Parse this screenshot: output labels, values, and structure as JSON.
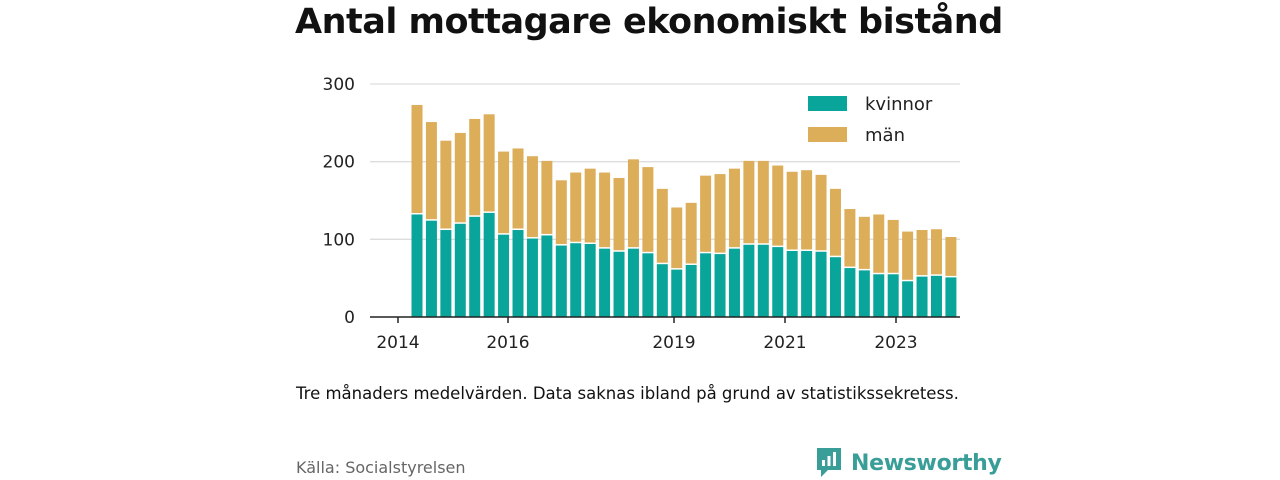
{
  "title": "Antal mottagare ekonomiskt bistånd",
  "note": "Tre månaders medelvärden. Data saknas ibland på grund av statistikssekretess.",
  "source": "Källa: Socialstyrelsen",
  "brand": {
    "name": "Newsworthy",
    "icon": "newsworthy-logo-icon",
    "color": "#3a9e98"
  },
  "colors": {
    "kvinnor": "#0aa59a",
    "man": "#dcae5a",
    "grid": "#dddddd",
    "axis": "#222222"
  },
  "chart_data": {
    "type": "bar",
    "stacked": true,
    "title": "Antal mottagare ekonomiskt bistånd",
    "xlabel": "",
    "ylabel": "",
    "ylim": [
      0,
      300
    ],
    "yticks": [
      0,
      100,
      200,
      300
    ],
    "xticks": [
      "2014",
      "2016",
      "2019",
      "2021",
      "2023"
    ],
    "grid": true,
    "legend_position": "top-right",
    "series": [
      {
        "name": "kvinnor",
        "color": "#0aa59a",
        "values": [
          132,
          124,
          112,
          120,
          129,
          134,
          106,
          112,
          101,
          105,
          92,
          95,
          94,
          88,
          84,
          88,
          82,
          68,
          61,
          67,
          82,
          81,
          88,
          93,
          93,
          90,
          85,
          85,
          84,
          77,
          63,
          60,
          55,
          55,
          46,
          52,
          53,
          51
        ]
      },
      {
        "name": "män",
        "color": "#dcae5a",
        "values": [
          141,
          127,
          115,
          117,
          126,
          127,
          107,
          105,
          106,
          96,
          84,
          91,
          97,
          98,
          95,
          115,
          111,
          97,
          80,
          80,
          100,
          103,
          103,
          108,
          108,
          105,
          102,
          104,
          99,
          88,
          76,
          69,
          77,
          70,
          64,
          60,
          60,
          52
        ]
      }
    ]
  }
}
